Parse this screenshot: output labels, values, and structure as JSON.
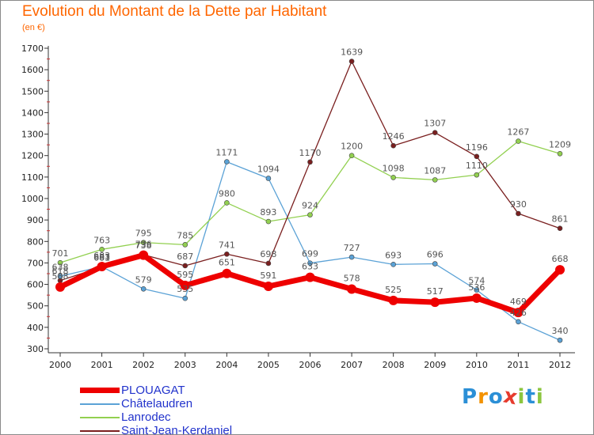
{
  "title": "Evolution du Montant de la Dette par Habitant",
  "subtitle": "(en €)",
  "logo": {
    "text": "Proxiti",
    "letters": [
      "P",
      "r",
      "o",
      "x",
      "i",
      "t",
      "i"
    ],
    "colors": [
      "#2b8fd6",
      "#f39200",
      "#2b8fd6",
      "#e63b2e",
      "#8cc63f",
      "#2b8fd6",
      "#8cc63f"
    ]
  },
  "chart_data": {
    "type": "line",
    "title": "Evolution du Montant de la Dette par Habitant",
    "subtitle": "(en €)",
    "xlabel": "",
    "ylabel": "",
    "x": [
      "2000",
      "2001",
      "2002",
      "2003",
      "2004",
      "2005",
      "2006",
      "2007",
      "2008",
      "2009",
      "2010",
      "2011",
      "2012"
    ],
    "ylim": [
      300,
      1700
    ],
    "yticks": [
      300,
      400,
      500,
      600,
      700,
      800,
      900,
      1000,
      1100,
      1200,
      1300,
      1400,
      1500,
      1600,
      1700
    ],
    "grid": false,
    "legend_position": "bottom-left",
    "series": [
      {
        "name": "PLOUAGAT",
        "color": "#ee0000",
        "values": [
          588,
          683,
          736,
          595,
          651,
          591,
          633,
          578,
          525,
          517,
          536,
          469,
          668
        ]
      },
      {
        "name": "Châtelaudren",
        "color": "#5ba2d6",
        "values": [
          638,
          683,
          579,
          535,
          1171,
          1094,
          699,
          727,
          693,
          696,
          574,
          426,
          340
        ]
      },
      {
        "name": "Lanrodec",
        "color": "#92d050",
        "values": [
          701,
          763,
          795,
          785,
          980,
          893,
          924,
          1200,
          1098,
          1087,
          1110,
          1267,
          1209
        ]
      },
      {
        "name": "Saint-Jean-Kerdaniel",
        "color": "#7a1f1f",
        "values": [
          618,
          681,
          738,
          687,
          741,
          698,
          1170,
          1639,
          1246,
          1307,
          1196,
          930,
          861
        ]
      }
    ],
    "labels": [
      {
        "series": "PLOUAGAT",
        "values": [
          "588",
          "683",
          "736",
          "595",
          "651",
          "591",
          "633",
          "578",
          "525",
          "517",
          "536",
          "469",
          "668"
        ]
      },
      {
        "series": "Châtelaudren",
        "values": [
          "638",
          "683",
          "579",
          "535",
          "1171",
          "1094",
          "699",
          "727",
          "693",
          "696",
          "574",
          "426",
          "340"
        ]
      },
      {
        "series": "Lanrodec",
        "values": [
          "701",
          "763",
          "795",
          "785",
          "980",
          "893",
          "924",
          "1200",
          "1098",
          "1087",
          "1110",
          "1267",
          "1209"
        ]
      },
      {
        "series": "Saint-Jean-Kerdaniel",
        "values": [
          "618",
          "681",
          "738",
          "687",
          "741",
          "698",
          "1170",
          "1639",
          "1246",
          "1307",
          "1196",
          "930",
          "861"
        ]
      }
    ]
  }
}
